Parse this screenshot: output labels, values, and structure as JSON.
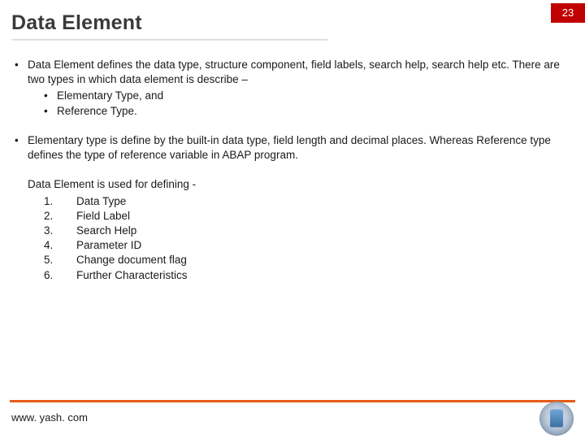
{
  "page_number": "23",
  "title": "Data Element",
  "colors": {
    "page_number_bg": "#c00000",
    "page_number_fg": "#ffffff",
    "rule": "#e45c1a",
    "text": "#1a1a1a",
    "title": "#3a3a3a"
  },
  "bullets": [
    {
      "text": "Data Element defines the data type, structure component, field labels, search help, search help etc. There are two types in which data element is describe –",
      "sub": [
        "Elementary Type, and",
        " Reference Type."
      ]
    },
    {
      "text": "Elementary type is define by the built-in data type, field length and decimal places. Whereas Reference type defines the type of reference variable in ABAP program.",
      "sub": []
    }
  ],
  "defining": {
    "lead": "Data Element is used for defining -",
    "items": [
      "Data Type",
      "Field Label",
      "Search Help",
      "Parameter ID",
      "Change document flag",
      "Further Characteristics"
    ]
  },
  "footer_url": "www. yash. com"
}
